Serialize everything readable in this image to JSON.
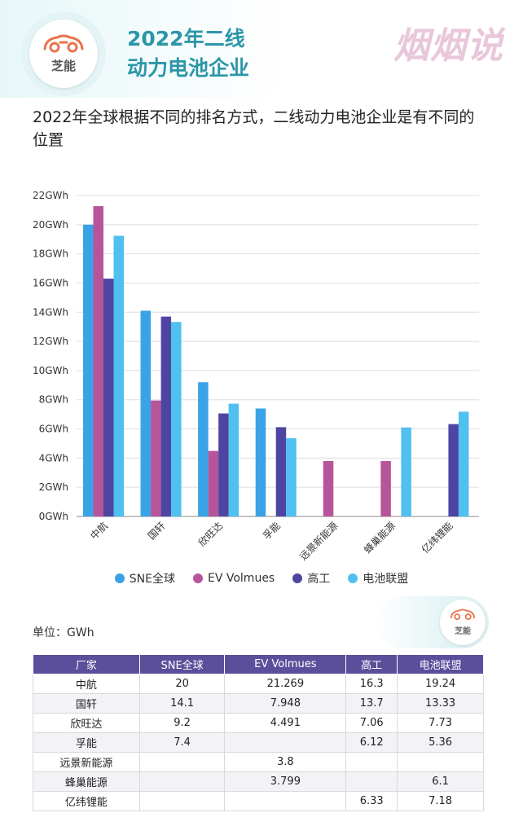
{
  "header": {
    "title_line1": "2022年二线",
    "title_line2": "动力电池企业",
    "logo_text": "芝能",
    "brand": "烟烟说"
  },
  "subtitle": "2022年全球根据不同的排名方式，二线动力电池企业是有不同的位置",
  "corner_logo_text": "芝能",
  "unit_label": "单位：GWh",
  "chart_data": {
    "type": "bar",
    "title": "",
    "xlabel": "",
    "ylabel": "",
    "ylim": [
      0,
      22
    ],
    "yticks": [
      0,
      2,
      4,
      6,
      8,
      10,
      12,
      14,
      16,
      18,
      20,
      22
    ],
    "ytick_labels": [
      "0GWh",
      "2GWh",
      "4GWh",
      "6GWh",
      "8GWh",
      "10GWh",
      "12GWh",
      "14GWh",
      "16GWh",
      "18GWh",
      "20GWh",
      "22GWh"
    ],
    "grid": true,
    "legend_position": "bottom",
    "categories": [
      "中航",
      "国轩",
      "欣旺达",
      "孚能",
      "远景新能源",
      "蜂巢能源",
      "亿纬锂能"
    ],
    "series": [
      {
        "name": "SNE全球",
        "color": "#3aa2e6",
        "values": [
          20,
          14.1,
          9.2,
          7.4,
          null,
          null,
          null
        ]
      },
      {
        "name": "EV Volmues",
        "color": "#b6559a",
        "values": [
          21.269,
          7.948,
          4.491,
          null,
          3.8,
          3.799,
          null
        ]
      },
      {
        "name": "高工",
        "color": "#4e45a3",
        "values": [
          16.3,
          13.7,
          7.06,
          6.12,
          null,
          null,
          6.33
        ]
      },
      {
        "name": "电池联盟",
        "color": "#4fc0ef",
        "values": [
          19.24,
          13.33,
          7.73,
          5.36,
          null,
          6.1,
          7.18
        ]
      }
    ]
  },
  "table": {
    "headers": [
      "厂家",
      "SNE全球",
      "EV Volmues",
      "高工",
      "电池联盟"
    ],
    "rows": [
      [
        "中航",
        "20",
        "21.269",
        "16.3",
        "19.24"
      ],
      [
        "国轩",
        "14.1",
        "7.948",
        "13.7",
        "13.33"
      ],
      [
        "欣旺达",
        "9.2",
        "4.491",
        "7.06",
        "7.73"
      ],
      [
        "孚能",
        "7.4",
        "",
        "6.12",
        "5.36"
      ],
      [
        "远景新能源",
        "",
        "3.8",
        "",
        ""
      ],
      [
        "蜂巢能源",
        "",
        "3.799",
        "",
        "6.1"
      ],
      [
        "亿纬锂能",
        "",
        "",
        "6.33",
        "7.18"
      ]
    ]
  }
}
